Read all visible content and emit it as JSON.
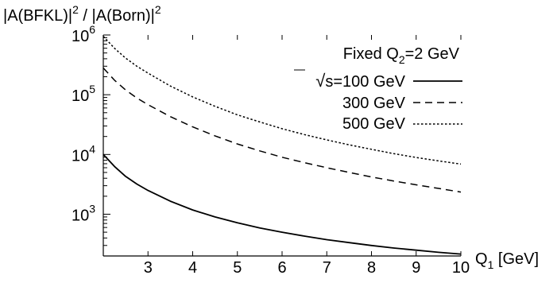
{
  "chart_data": {
    "type": "line",
    "ylabel_parts": {
      "a1": "|A(BFKL)|",
      "exp1": "2",
      "mid": " / |A(Born)|",
      "exp2": "2"
    },
    "xlabel_parts": {
      "main": "Q",
      "sub": "1",
      "unit": " [GeV]"
    },
    "xlim": [
      2,
      10
    ],
    "ylim": [
      200,
      1000000
    ],
    "yscale": "log",
    "x_ticks": [
      3,
      4,
      5,
      6,
      7,
      8,
      9,
      10
    ],
    "x_tick_labels": [
      "3",
      "4",
      "5",
      "6",
      "7",
      "8",
      "9",
      "10"
    ],
    "y_ticks": [
      1000,
      10000,
      100000,
      1000000
    ],
    "y_tick_labels": [
      {
        "base": "10",
        "exp": "3"
      },
      {
        "base": "10",
        "exp": "4"
      },
      {
        "base": "10",
        "exp": "5"
      },
      {
        "base": "10",
        "exp": "6"
      }
    ],
    "annotation_parts": {
      "main": "Fixed Q",
      "sub": "2",
      "rest": "=2 GeV"
    },
    "legend_placement": "top-right",
    "grid": false,
    "series": [
      {
        "name_parts": {
          "sqrt": "√",
          "s": "s",
          "rest": "=100 GeV"
        },
        "style": "solid",
        "x": [
          2,
          2.25,
          2.5,
          2.75,
          3,
          3.5,
          4,
          4.5,
          5,
          5.5,
          6,
          6.5,
          7,
          7.5,
          8,
          8.5,
          9,
          9.5,
          10
        ],
        "y": [
          10000,
          6300,
          4300,
          3200,
          2500,
          1650,
          1180,
          900,
          720,
          590,
          500,
          430,
          375,
          335,
          300,
          272,
          250,
          230,
          215
        ]
      },
      {
        "name": "300 GeV",
        "style": "dashed",
        "x": [
          2,
          2.25,
          2.5,
          2.75,
          3,
          3.5,
          4,
          4.5,
          5,
          5.5,
          6,
          6.5,
          7,
          7.5,
          8,
          8.5,
          9,
          9.5,
          10
        ],
        "y": [
          280000,
          175000,
          120000,
          88000,
          68000,
          43000,
          29000,
          20500,
          15000,
          11500,
          9000,
          7300,
          6000,
          5000,
          4200,
          3600,
          3100,
          2700,
          2350
        ]
      },
      {
        "name": "500 GeV",
        "style": "dotted",
        "x": [
          2,
          2.25,
          2.5,
          2.75,
          3,
          3.5,
          4,
          4.5,
          5,
          5.5,
          6,
          6.5,
          7,
          7.5,
          8,
          8.5,
          9,
          9.5,
          10
        ],
        "y": [
          950000,
          600000,
          410000,
          300000,
          230000,
          140000,
          92000,
          64000,
          46000,
          35000,
          27000,
          21500,
          17500,
          14500,
          12200,
          10300,
          8900,
          7800,
          6900
        ]
      }
    ]
  }
}
